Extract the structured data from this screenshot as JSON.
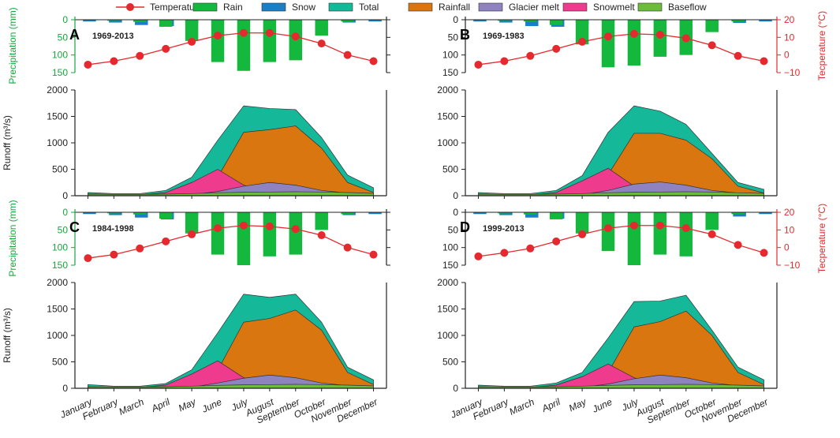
{
  "legend": [
    {
      "name": "Temperature",
      "kind": "line",
      "color": "#e5292e"
    },
    {
      "name": "Rain",
      "kind": "bar",
      "color": "#14b83c"
    },
    {
      "name": "Snow",
      "kind": "bar",
      "color": "#1a7fc4"
    },
    {
      "name": "Total",
      "kind": "area",
      "color": "#16b89a"
    },
    {
      "name": "Rainfall",
      "kind": "area",
      "color": "#d9760f"
    },
    {
      "name": "Glacier melt",
      "kind": "area",
      "color": "#8e82c0"
    },
    {
      "name": "Snowmelt",
      "kind": "area",
      "color": "#ee3b8e"
    },
    {
      "name": "Baseflow",
      "kind": "area",
      "color": "#6bbb3c"
    }
  ],
  "axis_labels": {
    "precip": "Precipitation (mm)",
    "runoff": "Runoff (m³/s)",
    "temp": "Tecperature (°C)"
  },
  "chart_data": {
    "type": "area",
    "months": [
      "January",
      "February",
      "March",
      "April",
      "May",
      "June",
      "July",
      "August",
      "September",
      "October",
      "November",
      "December"
    ],
    "precip_ticks": [
      "0",
      "50",
      "100",
      "150"
    ],
    "temp_ticks": [
      "20",
      "10",
      "0",
      "−10"
    ],
    "runoff_ticks": [
      "2000",
      "1500",
      "1000",
      "500",
      "0"
    ],
    "precip_ylim": [
      0,
      150
    ],
    "temp_ylim": [
      -10,
      20
    ],
    "runoff_ylim": [
      0,
      2000
    ],
    "panels": [
      {
        "letter": "A",
        "period": "1969-2013",
        "rain": [
          1,
          3,
          6,
          20,
          60,
          120,
          145,
          120,
          115,
          45,
          5,
          1
        ],
        "snow": [
          5,
          8,
          15,
          18,
          10,
          3,
          0,
          0,
          1,
          5,
          8,
          5
        ],
        "temperature": [
          -5.5,
          -3.5,
          -0.5,
          3.5,
          7.5,
          11,
          12.5,
          12.5,
          10.5,
          6.5,
          0,
          -3.5
        ],
        "total": [
          60,
          40,
          40,
          100,
          350,
          1050,
          1700,
          1650,
          1630,
          1100,
          390,
          150
        ],
        "rainfall": [
          0,
          0,
          0,
          0,
          50,
          350,
          1200,
          1250,
          1320,
          900,
          250,
          60
        ],
        "glacier_melt": [
          0,
          0,
          0,
          0,
          20,
          80,
          180,
          250,
          200,
          100,
          50,
          20
        ],
        "snowmelt": [
          20,
          10,
          15,
          60,
          250,
          500,
          200,
          50,
          10,
          0,
          0,
          0
        ],
        "baseflow": [
          30,
          25,
          25,
          30,
          40,
          55,
          65,
          70,
          75,
          70,
          60,
          45
        ]
      },
      {
        "letter": "B",
        "period": "1969-1983",
        "rain": [
          1,
          3,
          5,
          15,
          70,
          135,
          130,
          105,
          100,
          35,
          5,
          1
        ],
        "snow": [
          5,
          8,
          18,
          20,
          12,
          4,
          0,
          0,
          2,
          6,
          9,
          5
        ],
        "temperature": [
          -5.5,
          -3.5,
          -0.5,
          3.5,
          7.5,
          10.5,
          12,
          11.5,
          9.5,
          5.5,
          -0.5,
          -3.5
        ],
        "total": [
          60,
          40,
          40,
          100,
          380,
          1200,
          1700,
          1600,
          1350,
          800,
          250,
          120
        ],
        "rainfall": [
          0,
          0,
          0,
          0,
          60,
          400,
          1180,
          1180,
          1050,
          700,
          180,
          50
        ],
        "glacier_melt": [
          0,
          0,
          0,
          0,
          20,
          100,
          220,
          260,
          200,
          100,
          50,
          20
        ],
        "snowmelt": [
          20,
          10,
          15,
          60,
          280,
          520,
          180,
          40,
          10,
          0,
          0,
          0
        ],
        "baseflow": [
          30,
          25,
          25,
          30,
          40,
          55,
          65,
          70,
          75,
          70,
          55,
          45
        ]
      },
      {
        "letter": "C",
        "period": "1984-1998",
        "rain": [
          1,
          3,
          6,
          18,
          60,
          120,
          150,
          125,
          120,
          50,
          5,
          1
        ],
        "snow": [
          5,
          8,
          15,
          20,
          10,
          3,
          0,
          0,
          1,
          5,
          8,
          5
        ],
        "temperature": [
          -6,
          -4,
          -0.5,
          3.5,
          7.5,
          11,
          12.5,
          12,
          10.5,
          7,
          0,
          -4
        ],
        "total": [
          70,
          40,
          40,
          90,
          350,
          1050,
          1780,
          1720,
          1780,
          1250,
          400,
          160
        ],
        "rainfall": [
          0,
          0,
          0,
          0,
          50,
          340,
          1250,
          1320,
          1480,
          1100,
          300,
          70
        ],
        "glacier_melt": [
          0,
          0,
          0,
          0,
          20,
          100,
          190,
          250,
          200,
          100,
          50,
          20
        ],
        "snowmelt": [
          20,
          10,
          15,
          60,
          270,
          520,
          200,
          60,
          10,
          0,
          0,
          0
        ],
        "baseflow": [
          30,
          25,
          25,
          30,
          40,
          55,
          65,
          70,
          75,
          70,
          60,
          45
        ]
      },
      {
        "letter": "D",
        "period": "1999-2013",
        "rain": [
          1,
          3,
          6,
          20,
          60,
          110,
          150,
          120,
          125,
          50,
          5,
          1
        ],
        "snow": [
          5,
          8,
          15,
          18,
          10,
          3,
          0,
          0,
          1,
          4,
          12,
          5
        ],
        "temperature": [
          -5,
          -3,
          -0.5,
          3.5,
          7.5,
          11,
          12.5,
          12.5,
          11,
          7.5,
          1.5,
          -3
        ],
        "total": [
          60,
          40,
          40,
          100,
          300,
          950,
          1640,
          1650,
          1760,
          1100,
          400,
          160
        ],
        "rainfall": [
          0,
          0,
          0,
          0,
          40,
          300,
          1160,
          1260,
          1460,
          1000,
          300,
          70
        ],
        "glacier_melt": [
          0,
          0,
          0,
          0,
          20,
          80,
          180,
          250,
          200,
          100,
          50,
          20
        ],
        "snowmelt": [
          20,
          10,
          15,
          60,
          220,
          460,
          200,
          50,
          10,
          0,
          0,
          0
        ],
        "baseflow": [
          30,
          25,
          25,
          30,
          40,
          55,
          65,
          70,
          75,
          70,
          60,
          45
        ]
      }
    ]
  }
}
